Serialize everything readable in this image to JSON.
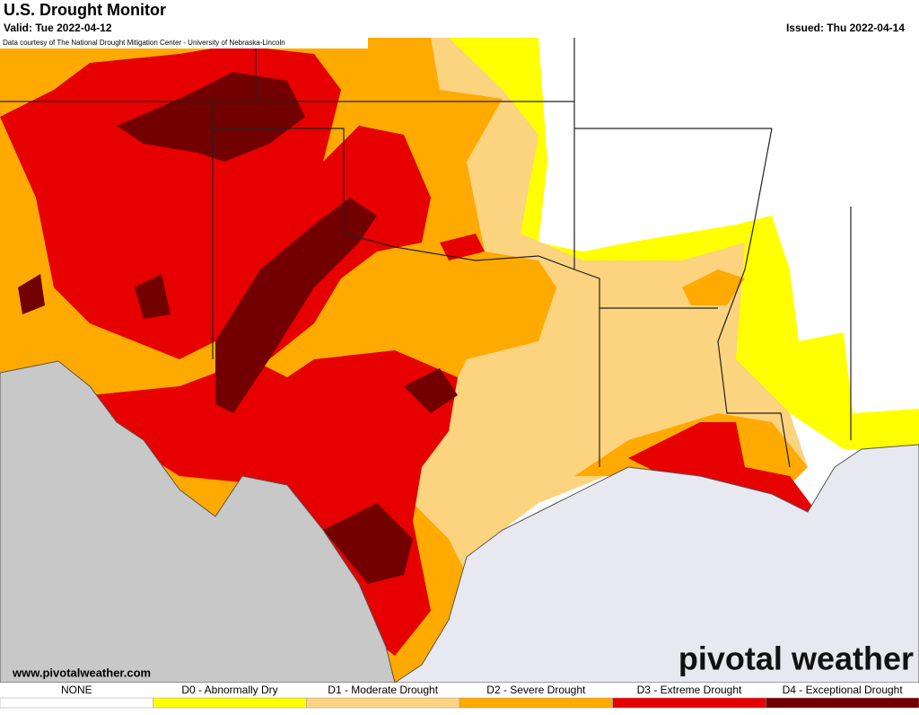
{
  "header": {
    "title": "U.S. Drought Monitor",
    "valid": "Valid: Tue 2022-04-12",
    "issued": "Issued: Thu 2022-04-14",
    "courtesy": "Data courtesy of The National Drought Mitigation Center - University of Nebraska-Lincoln"
  },
  "footer": {
    "website": "www.pivotalweather.com",
    "brand": "pivotal weather"
  },
  "legend": {
    "items": [
      {
        "label": "NONE",
        "color": "#ffffff"
      },
      {
        "label": "D0 - Abnormally Dry",
        "color": "#ffff00"
      },
      {
        "label": "D1 - Moderate Drought",
        "color": "#fcd37f"
      },
      {
        "label": "D2 - Severe Drought",
        "color": "#ffaa00"
      },
      {
        "label": "D3 - Extreme Drought",
        "color": "#e60000"
      },
      {
        "label": "D4 - Exceptional Drought",
        "color": "#730000"
      }
    ]
  }
}
